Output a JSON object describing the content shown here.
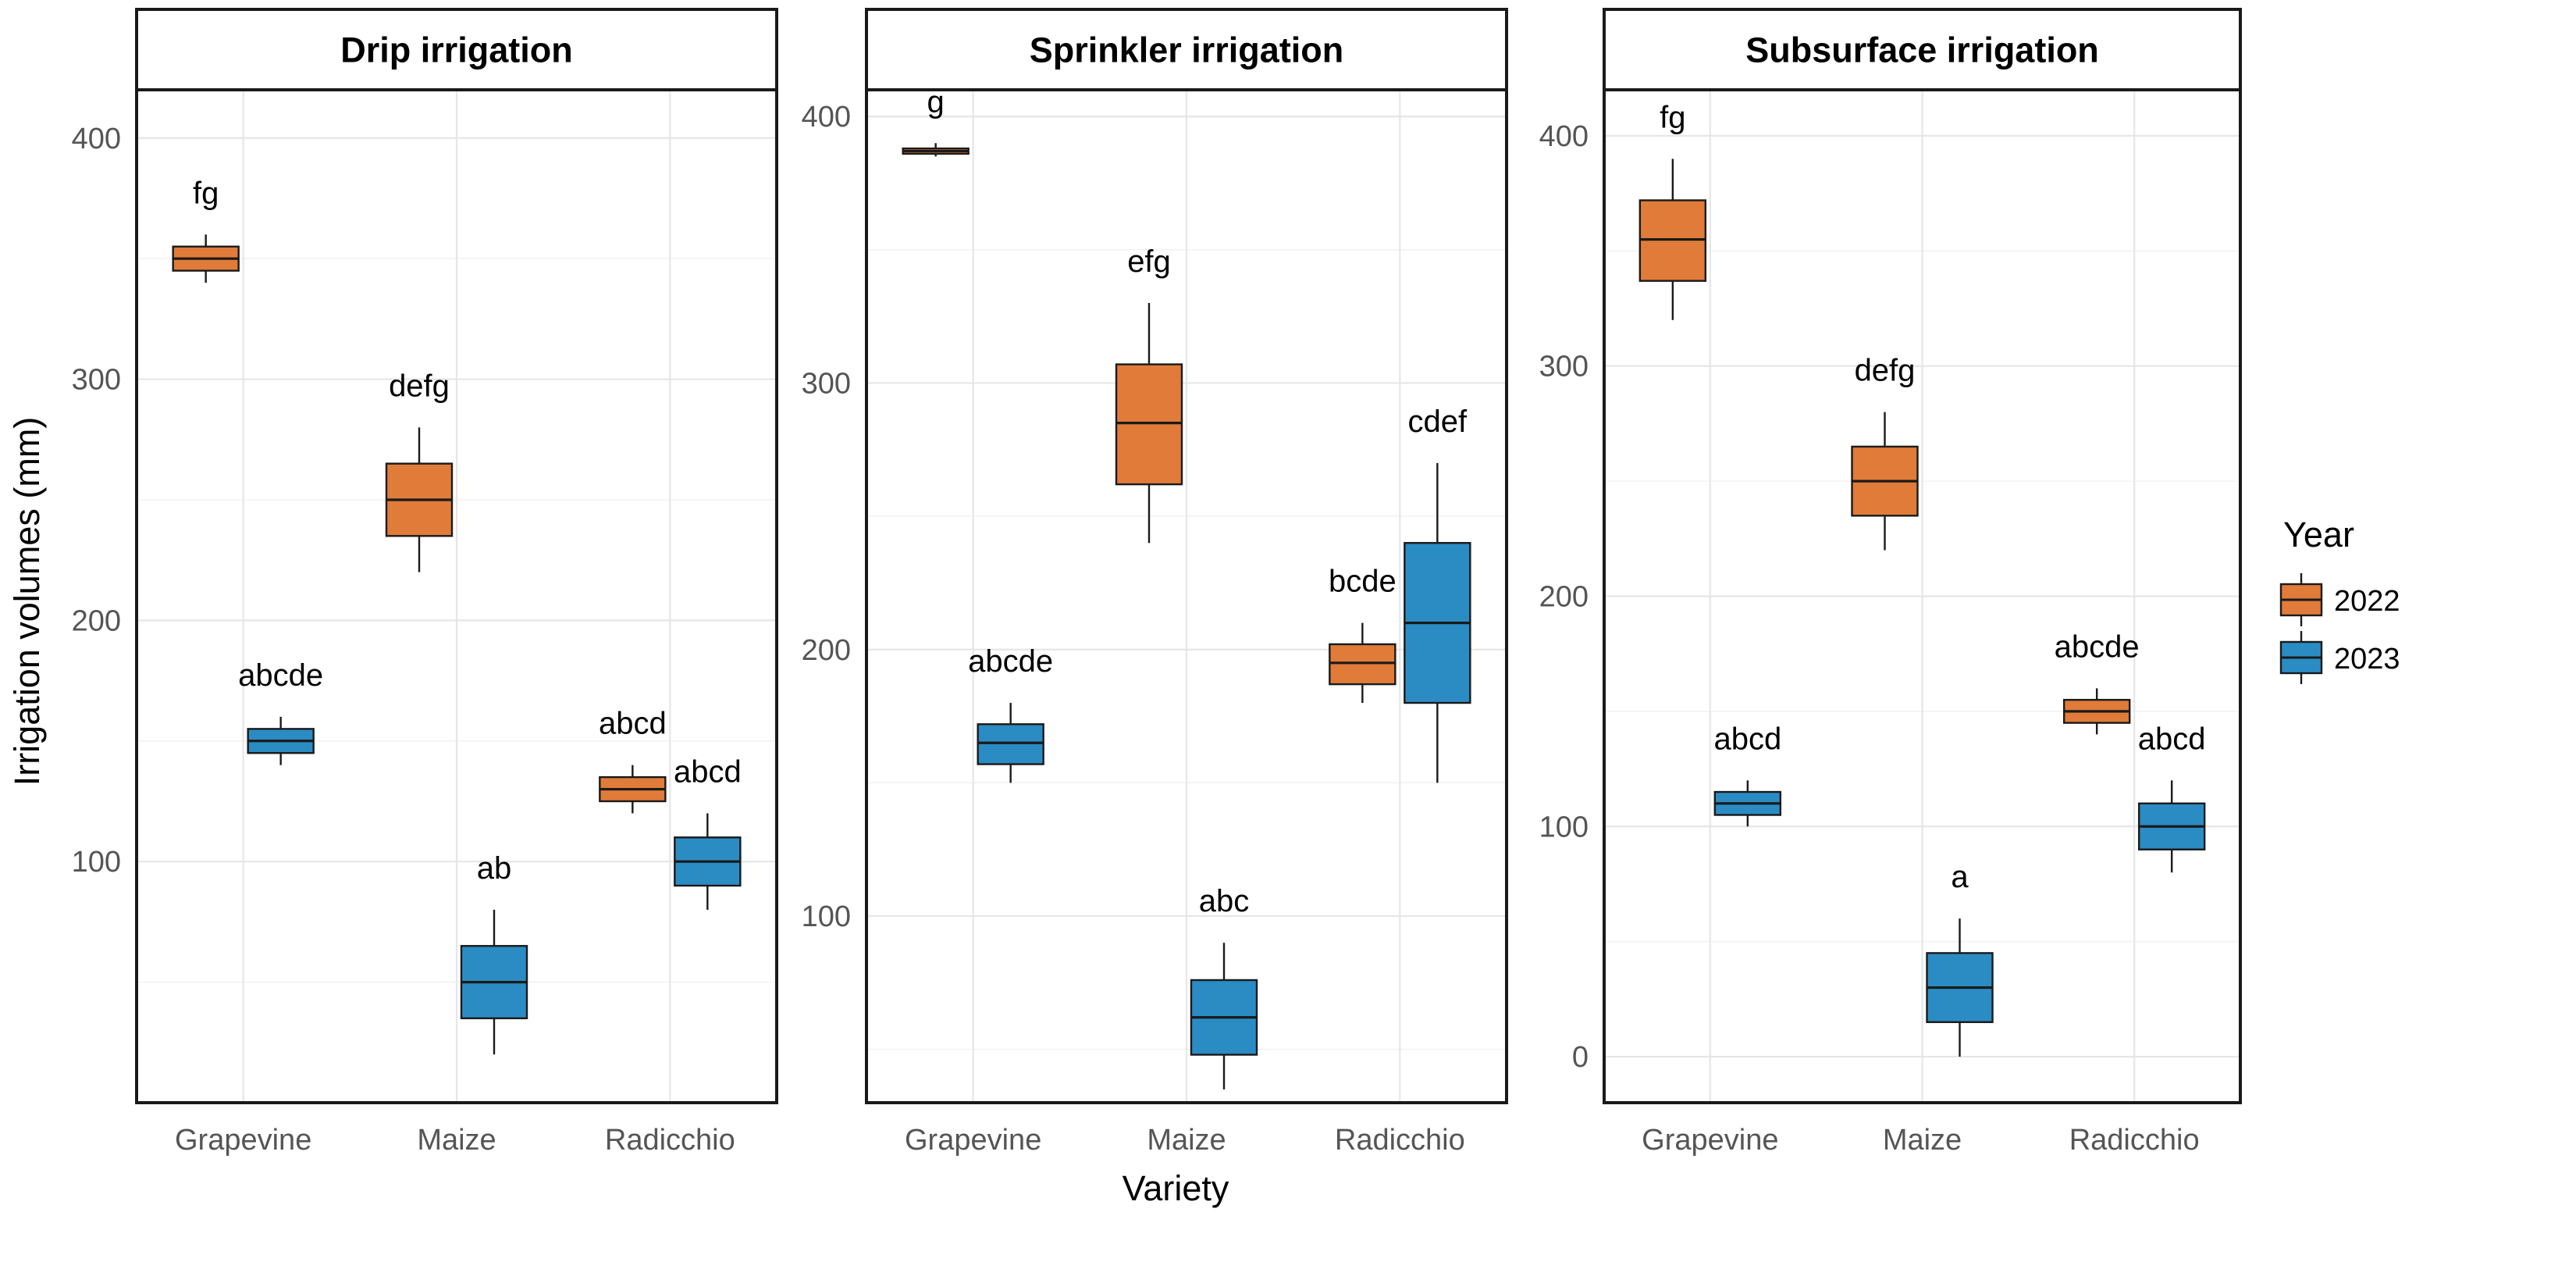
{
  "chart_data": {
    "type": "box",
    "xlabel": "Variety",
    "ylabel": "Irrigation volumes (mm)",
    "categories": [
      "Grapevine",
      "Maize",
      "Radicchio"
    ],
    "legend": {
      "title": "Year",
      "placement": "right",
      "entries": [
        {
          "label": "2022",
          "color": "#E07B39"
        },
        {
          "label": "2023",
          "color": "#2B8CC4"
        }
      ]
    },
    "panels": [
      {
        "title": "Drip irrigation",
        "ylim": [
          0,
          420
        ],
        "yticks": [
          100,
          200,
          300,
          400
        ],
        "boxes": [
          {
            "category": "Grapevine",
            "year": "2022",
            "min": 340,
            "q1": 345,
            "median": 350,
            "q3": 355,
            "max": 360,
            "letter": "fg"
          },
          {
            "category": "Grapevine",
            "year": "2023",
            "min": 140,
            "q1": 145,
            "median": 150,
            "q3": 155,
            "max": 160,
            "letter": "abcde"
          },
          {
            "category": "Maize",
            "year": "2022",
            "min": 220,
            "q1": 235,
            "median": 250,
            "q3": 265,
            "max": 280,
            "letter": "defg"
          },
          {
            "category": "Maize",
            "year": "2023",
            "min": 20,
            "q1": 35,
            "median": 50,
            "q3": 65,
            "max": 80,
            "letter": "ab"
          },
          {
            "category": "Radicchio",
            "year": "2022",
            "min": 120,
            "q1": 125,
            "median": 130,
            "q3": 135,
            "max": 140,
            "letter": "abcd"
          },
          {
            "category": "Radicchio",
            "year": "2023",
            "min": 80,
            "q1": 90,
            "median": 100,
            "q3": 110,
            "max": 120,
            "letter": "abcd"
          }
        ]
      },
      {
        "title": "Sprinkler irrigation",
        "ylim": [
          30,
          410
        ],
        "yticks": [
          100,
          200,
          300,
          400
        ],
        "boxes": [
          {
            "category": "Grapevine",
            "year": "2022",
            "min": 385,
            "q1": 386,
            "median": 387,
            "q3": 388,
            "max": 390,
            "letter": "g"
          },
          {
            "category": "Grapevine",
            "year": "2023",
            "min": 150,
            "q1": 157,
            "median": 165,
            "q3": 172,
            "max": 180,
            "letter": "abcde"
          },
          {
            "category": "Maize",
            "year": "2022",
            "min": 240,
            "q1": 262,
            "median": 285,
            "q3": 307,
            "max": 330,
            "letter": "efg"
          },
          {
            "category": "Maize",
            "year": "2023",
            "min": 35,
            "q1": 48,
            "median": 62,
            "q3": 76,
            "max": 90,
            "letter": "abc"
          },
          {
            "category": "Radicchio",
            "year": "2022",
            "min": 180,
            "q1": 187,
            "median": 195,
            "q3": 202,
            "max": 210,
            "letter": "bcde"
          },
          {
            "category": "Radicchio",
            "year": "2023",
            "min": 150,
            "q1": 180,
            "median": 210,
            "q3": 240,
            "max": 270,
            "letter": "cdef"
          }
        ]
      },
      {
        "title": "Subsurface irrigation",
        "ylim": [
          -20,
          420
        ],
        "yticks": [
          0,
          100,
          200,
          300,
          400
        ],
        "boxes": [
          {
            "category": "Grapevine",
            "year": "2022",
            "min": 320,
            "q1": 337,
            "median": 355,
            "q3": 372,
            "max": 390,
            "letter": "fg"
          },
          {
            "category": "Grapevine",
            "year": "2023",
            "min": 100,
            "q1": 105,
            "median": 110,
            "q3": 115,
            "max": 120,
            "letter": "abcd"
          },
          {
            "category": "Maize",
            "year": "2022",
            "min": 220,
            "q1": 235,
            "median": 250,
            "q3": 265,
            "max": 280,
            "letter": "defg"
          },
          {
            "category": "Maize",
            "year": "2023",
            "min": 0,
            "q1": 15,
            "median": 30,
            "q3": 45,
            "max": 60,
            "letter": "a"
          },
          {
            "category": "Radicchio",
            "year": "2022",
            "min": 140,
            "q1": 145,
            "median": 150,
            "q3": 155,
            "max": 160,
            "letter": "abcde"
          },
          {
            "category": "Radicchio",
            "year": "2023",
            "min": 80,
            "q1": 90,
            "median": 100,
            "q3": 110,
            "max": 120,
            "letter": "abcd"
          }
        ]
      }
    ]
  }
}
